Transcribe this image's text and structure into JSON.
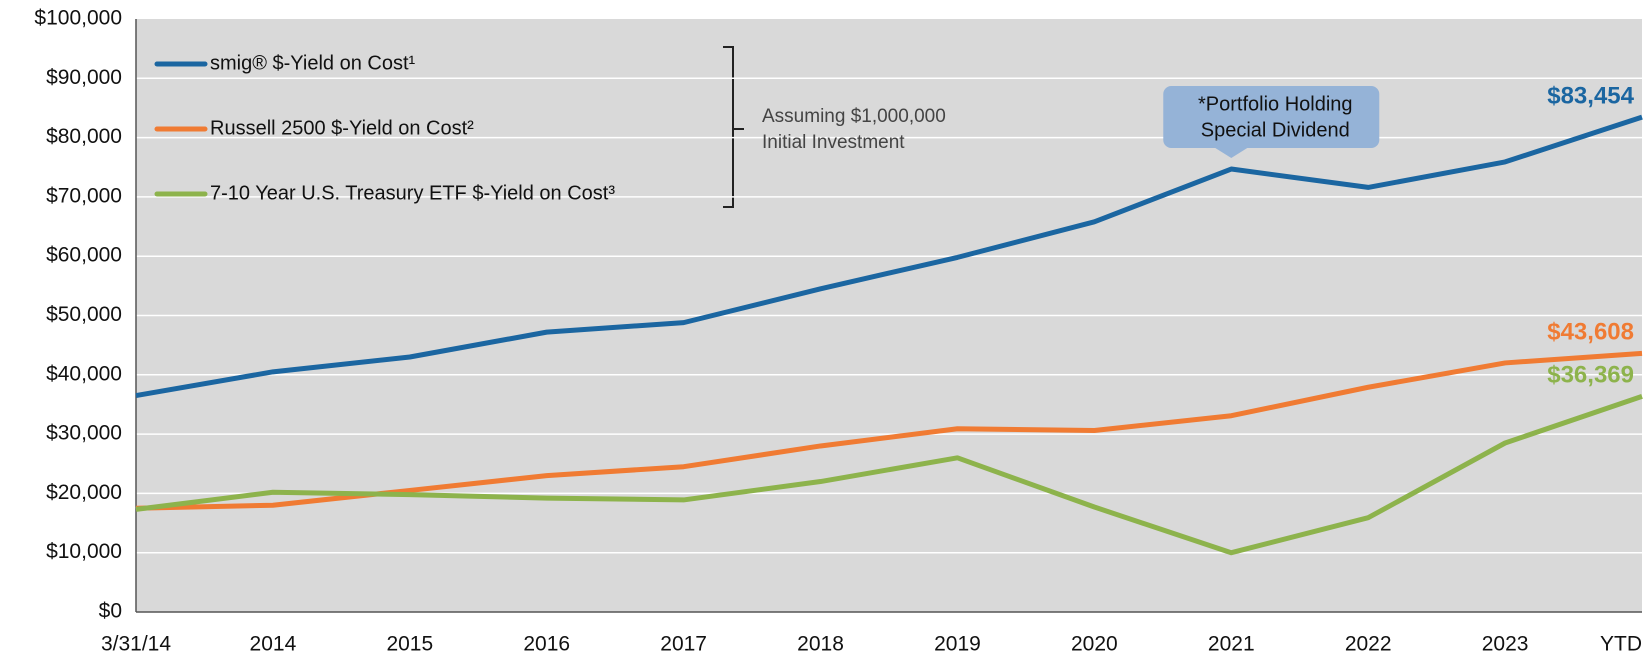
{
  "chart_data": {
    "type": "line",
    "categories": [
      "3/31/14",
      "2014",
      "2015",
      "2016",
      "2017",
      "2018",
      "2019",
      "2020",
      "2021",
      "2022",
      "2023",
      "YTD"
    ],
    "series": [
      {
        "name": "smig® $-Yield on Cost¹",
        "color": "#1b66a1",
        "values": [
          36500,
          40500,
          43000,
          47200,
          48800,
          54500,
          59800,
          65800,
          74700,
          71600,
          75900,
          83454
        ],
        "value_labels": [
          null,
          null,
          null,
          null,
          null,
          null,
          null,
          null,
          null,
          null,
          null,
          "$83,454"
        ]
      },
      {
        "name": "Russell 2500 $-Yield on Cost²",
        "color": "#f07b33",
        "values": [
          17500,
          18000,
          20500,
          23000,
          24500,
          28000,
          30900,
          30600,
          33100,
          37900,
          42000,
          43608
        ],
        "value_labels": [
          null,
          null,
          null,
          null,
          null,
          null,
          null,
          null,
          null,
          null,
          null,
          "$43,608"
        ]
      },
      {
        "name": "7-10 Year U.S. Treasury ETF $-Yield on Cost³",
        "color": "#8db34c",
        "values": [
          17300,
          20200,
          19800,
          19200,
          18900,
          22000,
          26000,
          17700,
          10000,
          15900,
          28500,
          36369
        ],
        "value_labels": [
          null,
          null,
          null,
          null,
          null,
          null,
          null,
          null,
          null,
          null,
          null,
          "$36,369"
        ]
      }
    ],
    "ylim": [
      0,
      100000
    ],
    "yticks": [
      {
        "value": 0,
        "label": "$0"
      },
      {
        "value": 10000,
        "label": "$10,000"
      },
      {
        "value": 20000,
        "label": "$20,000"
      },
      {
        "value": 30000,
        "label": "$30,000"
      },
      {
        "value": 40000,
        "label": "$40,000"
      },
      {
        "value": 50000,
        "label": "$50,000"
      },
      {
        "value": 60000,
        "label": "$60,000"
      },
      {
        "value": 70000,
        "label": "$70,000"
      },
      {
        "value": 80000,
        "label": "$80,000"
      },
      {
        "value": 90000,
        "label": "$90,000"
      },
      {
        "value": 100000,
        "label": "$100,000"
      }
    ],
    "grid": true,
    "legend": "upper left",
    "bracket_note": [
      "Assuming $1,000,000",
      "Initial Investment"
    ],
    "callout": [
      "*Portfolio Holding",
      "Special Dividend"
    ]
  }
}
